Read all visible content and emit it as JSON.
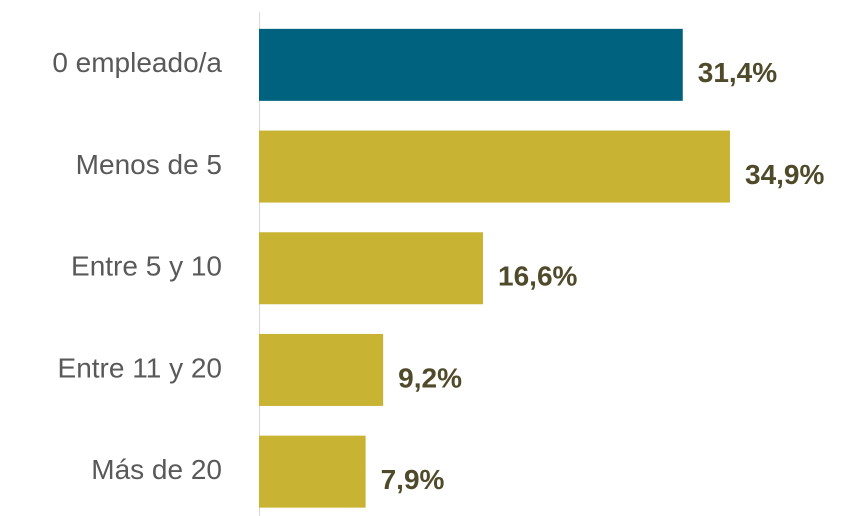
{
  "chart_data": {
    "type": "barh",
    "categories": [
      "0 empleado/a",
      "Menos de 5",
      "Entre 5 y 10",
      "Entre 11 y 20",
      "Más de 20"
    ],
    "values": [
      31.4,
      34.9,
      16.6,
      9.2,
      7.9
    ],
    "value_labels": [
      "31,4%",
      "34,9%",
      "16,6%",
      "9,2%",
      "7,9%"
    ],
    "colors": [
      "#00627f",
      "#c8b432",
      "#c8b432",
      "#c8b432",
      "#c8b432"
    ],
    "label_color": "#4f4a2a"
  }
}
